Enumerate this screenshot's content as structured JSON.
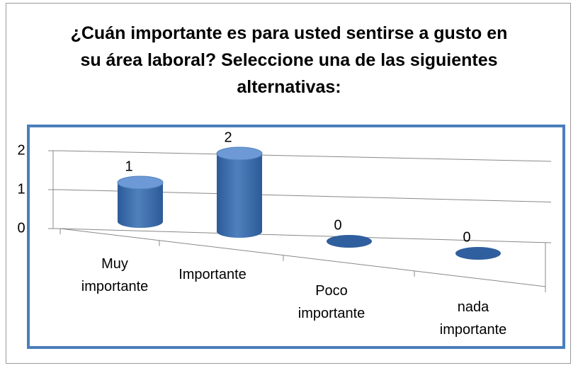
{
  "chart_data": {
    "type": "bar3d",
    "title": "¿Cuán importante es para usted sentirse a gusto en su área laboral? Seleccione una de las siguientes alternativas:",
    "categories": [
      "Muy importante",
      "Importante",
      "Poco importante",
      "nada importante"
    ],
    "values": [
      1,
      2,
      0,
      0
    ],
    "color": "#4f81bd",
    "ylim": [
      0,
      2
    ],
    "yticks": [
      0,
      1,
      2
    ],
    "grid": true
  }
}
